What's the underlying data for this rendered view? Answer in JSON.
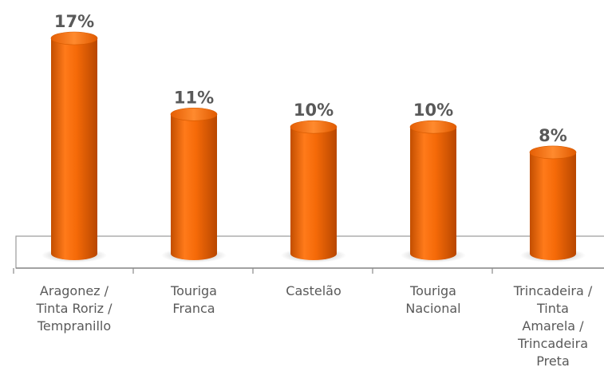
{
  "chart_data": {
    "type": "bar",
    "title": "",
    "xlabel": "",
    "ylabel": "",
    "categories": [
      [
        "Aragonez /",
        "Tinta Roriz /",
        "Tempranillo"
      ],
      [
        "Touriga",
        "Franca"
      ],
      [
        "Castelão"
      ],
      [
        "Touriga",
        "Nacional"
      ],
      [
        "Trincadeira /",
        "Tinta",
        "Amarela /",
        "Trincadeira",
        "Preta"
      ]
    ],
    "values": [
      17,
      11,
      10,
      10,
      8
    ],
    "value_labels": [
      "17%",
      "11%",
      "10%",
      "10%",
      "8%"
    ],
    "ylim": [
      0,
      17
    ],
    "grid": false,
    "legend": "none",
    "bar_color": "#f26a0a"
  }
}
